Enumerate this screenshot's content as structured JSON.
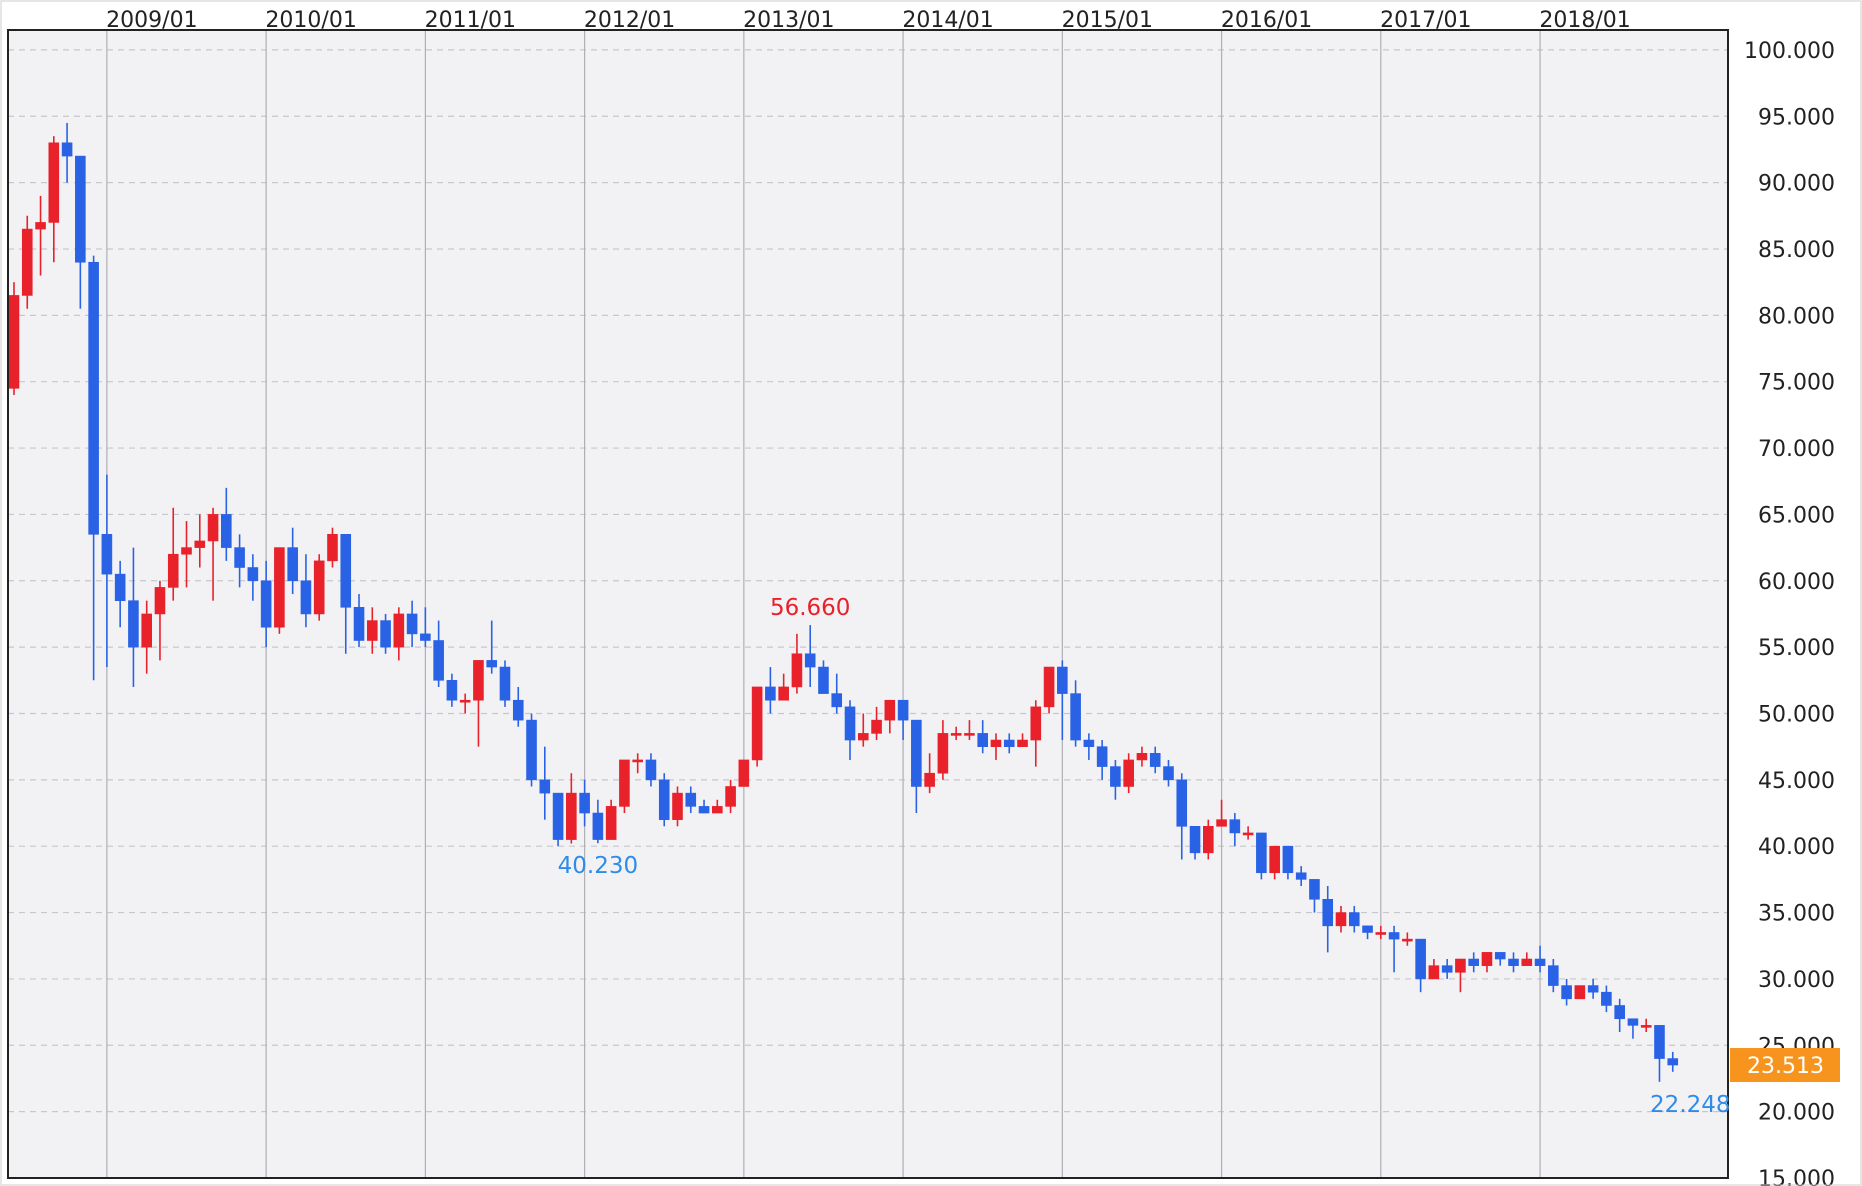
{
  "chart_data": {
    "type": "candlestick",
    "x_tick_labels": [
      "2009/01",
      "2010/01",
      "2011/01",
      "2012/01",
      "2013/01",
      "2014/01",
      "2015/01",
      "2016/01",
      "2017/01",
      "2018/01"
    ],
    "y_tick_labels": [
      "100.000",
      "95.000",
      "90.000",
      "85.000",
      "80.000",
      "75.000",
      "70.000",
      "65.000",
      "60.000",
      "55.000",
      "50.000",
      "45.000",
      "40.000",
      "35.000",
      "30.000",
      "25.000",
      "20.000",
      "15.000"
    ],
    "ylim": [
      15,
      101.5
    ],
    "grid": {
      "horizontal": "dashed",
      "vertical": "solid"
    },
    "colors": {
      "up": "#e8212b",
      "down": "#2a62e6",
      "current_price_bg": "#f7941d",
      "high_annotation": "#e8212b",
      "low_annotation": "#2e8ce8",
      "plot_bg": "#f2f2f5",
      "grid": "#c8c8cc"
    },
    "annotations": {
      "high_label": "56.660",
      "high_value": 56.66,
      "low_label_1": "40.230",
      "low_value_1": 40.23,
      "low_label_2": "22.248",
      "low_value_2": 22.248
    },
    "current_price": {
      "label": "23.513",
      "value": 23.513
    },
    "candles": [
      [
        74.5,
        81.5,
        82.5,
        74.0
      ],
      [
        81.5,
        86.5,
        87.5,
        80.5
      ],
      [
        86.5,
        87.0,
        89.0,
        83.0
      ],
      [
        87.0,
        93.0,
        93.5,
        84.0
      ],
      [
        93.0,
        92.0,
        94.5,
        90.0
      ],
      [
        92.0,
        84.0,
        92.0,
        80.5
      ],
      [
        84.0,
        63.5,
        84.5,
        52.5
      ],
      [
        63.5,
        60.5,
        68.0,
        53.5
      ],
      [
        60.5,
        58.5,
        61.5,
        56.5
      ],
      [
        58.5,
        55.0,
        62.5,
        52.0
      ],
      [
        55.0,
        57.5,
        58.5,
        53.0
      ],
      [
        57.5,
        59.5,
        60.0,
        54.0
      ],
      [
        59.5,
        62.0,
        65.5,
        58.5
      ],
      [
        62.0,
        62.5,
        64.5,
        59.5
      ],
      [
        62.5,
        63.0,
        65.0,
        61.0
      ],
      [
        63.0,
        65.0,
        65.5,
        58.5
      ],
      [
        65.0,
        62.5,
        67.0,
        61.5
      ],
      [
        62.5,
        61.0,
        63.5,
        59.5
      ],
      [
        61.0,
        60.0,
        62.0,
        58.5
      ],
      [
        60.0,
        56.5,
        61.5,
        55.0
      ],
      [
        56.5,
        62.5,
        62.5,
        56.0
      ],
      [
        62.5,
        60.0,
        64.0,
        59.0
      ],
      [
        60.0,
        57.5,
        62.0,
        56.5
      ],
      [
        57.5,
        61.5,
        62.0,
        57.0
      ],
      [
        61.5,
        63.5,
        64.0,
        61.0
      ],
      [
        63.5,
        58.0,
        63.5,
        54.5
      ],
      [
        58.0,
        55.5,
        59.0,
        55.0
      ],
      [
        55.5,
        57.0,
        58.0,
        54.5
      ],
      [
        57.0,
        55.0,
        57.5,
        54.5
      ],
      [
        55.0,
        57.5,
        58.0,
        54.0
      ],
      [
        57.5,
        56.0,
        58.5,
        55.0
      ],
      [
        56.0,
        55.5,
        58.0,
        55.0
      ],
      [
        55.5,
        52.5,
        57.0,
        52.0
      ],
      [
        52.5,
        51.0,
        53.0,
        50.5
      ],
      [
        51.0,
        51.0,
        51.5,
        50.0
      ],
      [
        51.0,
        54.0,
        54.0,
        47.5
      ],
      [
        54.0,
        53.5,
        57.0,
        53.0
      ],
      [
        53.5,
        51.0,
        54.0,
        50.5
      ],
      [
        51.0,
        49.5,
        52.0,
        49.0
      ],
      [
        49.5,
        45.0,
        50.0,
        44.5
      ],
      [
        45.0,
        44.0,
        47.5,
        42.0
      ],
      [
        44.0,
        40.5,
        44.0,
        40.0
      ],
      [
        40.5,
        44.0,
        45.5,
        40.2
      ],
      [
        44.0,
        42.5,
        45.0,
        41.5
      ],
      [
        42.5,
        40.5,
        43.5,
        40.23
      ],
      [
        40.5,
        43.0,
        43.5,
        40.5
      ],
      [
        43.0,
        46.5,
        46.5,
        42.5
      ],
      [
        46.5,
        46.5,
        47.0,
        45.5
      ],
      [
        46.5,
        45.0,
        47.0,
        44.5
      ],
      [
        45.0,
        42.0,
        45.5,
        41.5
      ],
      [
        42.0,
        44.0,
        44.5,
        41.5
      ],
      [
        44.0,
        43.0,
        44.5,
        42.5
      ],
      [
        43.0,
        42.5,
        43.5,
        42.5
      ],
      [
        42.5,
        43.0,
        43.5,
        42.5
      ],
      [
        43.0,
        44.5,
        45.0,
        42.5
      ],
      [
        44.5,
        46.5,
        46.5,
        44.5
      ],
      [
        46.5,
        52.0,
        52.0,
        46.0
      ],
      [
        52.0,
        51.0,
        53.5,
        50.0
      ],
      [
        51.0,
        52.0,
        53.0,
        51.0
      ],
      [
        52.0,
        54.5,
        56.0,
        51.5
      ],
      [
        54.5,
        53.5,
        56.66,
        52.0
      ],
      [
        53.5,
        51.5,
        54.0,
        51.5
      ],
      [
        51.5,
        50.5,
        53.0,
        50.0
      ],
      [
        50.5,
        48.0,
        51.0,
        46.5
      ],
      [
        48.0,
        48.5,
        50.0,
        47.5
      ],
      [
        48.5,
        49.5,
        50.5,
        48.0
      ],
      [
        49.5,
        51.0,
        51.0,
        48.5
      ],
      [
        51.0,
        49.5,
        51.0,
        48.0
      ],
      [
        49.5,
        44.5,
        49.5,
        42.5
      ],
      [
        44.5,
        45.5,
        47.0,
        44.0
      ],
      [
        45.5,
        48.5,
        49.5,
        45.0
      ],
      [
        48.5,
        48.5,
        49.0,
        48.0
      ],
      [
        48.5,
        48.5,
        49.5,
        48.0
      ],
      [
        48.5,
        47.5,
        49.5,
        47.0
      ],
      [
        47.5,
        48.0,
        48.5,
        46.5
      ],
      [
        48.0,
        47.5,
        48.5,
        47.0
      ],
      [
        47.5,
        48.0,
        48.5,
        47.5
      ],
      [
        48.0,
        50.5,
        51.0,
        46.0
      ],
      [
        50.5,
        53.5,
        53.5,
        50.0
      ],
      [
        53.5,
        51.5,
        54.0,
        48.0
      ],
      [
        51.5,
        48.0,
        52.5,
        47.5
      ],
      [
        48.0,
        47.5,
        48.5,
        46.5
      ],
      [
        47.5,
        46.0,
        48.0,
        45.0
      ],
      [
        46.0,
        44.5,
        46.5,
        43.5
      ],
      [
        44.5,
        46.5,
        47.0,
        44.0
      ],
      [
        46.5,
        47.0,
        47.5,
        46.0
      ],
      [
        47.0,
        46.0,
        47.5,
        45.5
      ],
      [
        46.0,
        45.0,
        46.5,
        44.5
      ],
      [
        45.0,
        41.5,
        45.5,
        39.0
      ],
      [
        41.5,
        39.5,
        41.5,
        39.0
      ],
      [
        39.5,
        41.5,
        42.0,
        39.0
      ],
      [
        41.5,
        42.0,
        43.5,
        41.5
      ],
      [
        42.0,
        41.0,
        42.5,
        40.0
      ],
      [
        41.0,
        41.0,
        41.5,
        40.5
      ],
      [
        41.0,
        38.0,
        41.0,
        37.5
      ],
      [
        38.0,
        40.0,
        40.0,
        37.5
      ],
      [
        40.0,
        38.0,
        40.0,
        37.5
      ],
      [
        38.0,
        37.5,
        38.5,
        37.0
      ],
      [
        37.5,
        36.0,
        37.5,
        35.0
      ],
      [
        36.0,
        34.0,
        37.0,
        32.0
      ],
      [
        34.0,
        35.0,
        35.5,
        33.5
      ],
      [
        35.0,
        34.0,
        35.5,
        33.5
      ],
      [
        34.0,
        33.5,
        34.0,
        33.0
      ],
      [
        33.5,
        33.5,
        34.0,
        33.0
      ],
      [
        33.5,
        33.0,
        34.0,
        30.5
      ],
      [
        33.0,
        33.0,
        33.5,
        32.5
      ],
      [
        33.0,
        30.0,
        33.0,
        29.0
      ],
      [
        30.0,
        31.0,
        31.5,
        30.0
      ],
      [
        31.0,
        30.5,
        31.5,
        30.0
      ],
      [
        30.5,
        31.5,
        31.5,
        29.0
      ],
      [
        31.5,
        31.0,
        32.0,
        30.5
      ],
      [
        31.0,
        32.0,
        32.0,
        30.5
      ],
      [
        32.0,
        31.5,
        32.0,
        31.0
      ],
      [
        31.5,
        31.0,
        32.0,
        30.5
      ],
      [
        31.0,
        31.5,
        32.0,
        31.0
      ],
      [
        31.5,
        31.0,
        32.5,
        30.5
      ],
      [
        31.0,
        29.5,
        31.5,
        29.0
      ],
      [
        29.5,
        28.5,
        30.0,
        28.0
      ],
      [
        28.5,
        29.5,
        29.5,
        28.5
      ],
      [
        29.5,
        29.0,
        30.0,
        28.5
      ],
      [
        29.0,
        28.0,
        29.5,
        27.5
      ],
      [
        28.0,
        27.0,
        28.5,
        26.0
      ],
      [
        27.0,
        26.5,
        27.0,
        25.5
      ],
      [
        26.5,
        26.5,
        27.0,
        26.0
      ],
      [
        26.5,
        24.0,
        26.5,
        22.248
      ],
      [
        24.0,
        23.513,
        24.5,
        23.0
      ]
    ]
  }
}
